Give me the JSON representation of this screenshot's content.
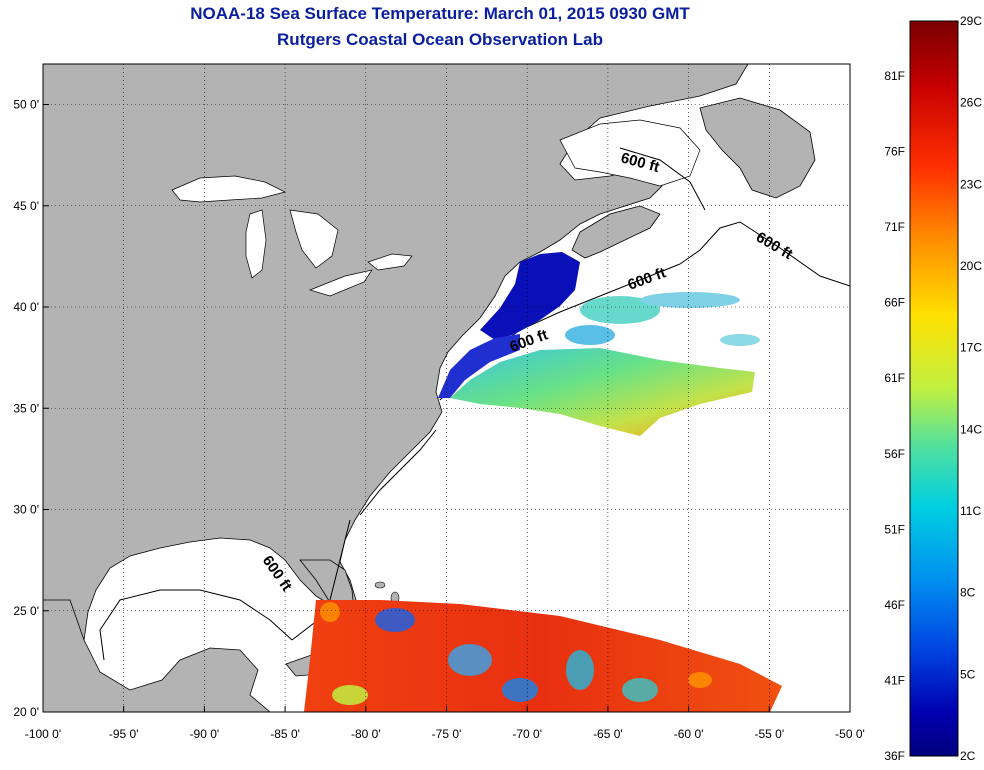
{
  "title_line1": "NOAA-18 Sea Surface Temperature:  March 01, 2015 0930 GMT",
  "title_line2": "Rutgers Coastal Ocean Observation Lab",
  "lon_ticks": [
    {
      "lon": -100,
      "label": "-100 0'"
    },
    {
      "lon": -95,
      "label": "-95 0'"
    },
    {
      "lon": -90,
      "label": "-90 0'"
    },
    {
      "lon": -85,
      "label": "-85 0'"
    },
    {
      "lon": -80,
      "label": "-80 0'"
    },
    {
      "lon": -75,
      "label": "-75 0'"
    },
    {
      "lon": -70,
      "label": "-70 0'"
    },
    {
      "lon": -65,
      "label": "-65 0'"
    },
    {
      "lon": -60,
      "label": "-60 0'"
    },
    {
      "lon": -55,
      "label": "-55 0'"
    },
    {
      "lon": -50,
      "label": "-50 0'"
    }
  ],
  "lat_ticks": [
    {
      "lat": 50,
      "label": "50 0'"
    },
    {
      "lat": 45,
      "label": "45 0'"
    },
    {
      "lat": 40,
      "label": "40 0'"
    },
    {
      "lat": 35,
      "label": "35 0'"
    },
    {
      "lat": 30,
      "label": "30 0'"
    },
    {
      "lat": 25,
      "label": "25 0'"
    },
    {
      "lat": 20,
      "label": "20 0'"
    }
  ],
  "extent": {
    "lon_min": -100,
    "lon_max": -50,
    "lat_min": 20,
    "lat_max": 52
  },
  "contour_label": "600 ft",
  "colorbar": {
    "min_c": 2,
    "max_c": 29,
    "celsius_labels": [
      "29C",
      "26C",
      "23C",
      "20C",
      "17C",
      "14C",
      "11C",
      "8C",
      "5C",
      "2C"
    ],
    "fahrenheit_labels": [
      "81F",
      "76F",
      "71F",
      "66F",
      "61F",
      "56F",
      "51F",
      "46F",
      "41F",
      "36F"
    ],
    "colors": [
      "#7a0000",
      "#c80000",
      "#ff3000",
      "#ff9000",
      "#ffe000",
      "#c0f040",
      "#50e0a0",
      "#00d0e0",
      "#0090f0",
      "#0040e0",
      "#0000b0",
      "#000080"
    ]
  },
  "colors": {
    "land": "#b3b3b3",
    "ocean": "#ffffff",
    "title": "#0a1fa0"
  }
}
